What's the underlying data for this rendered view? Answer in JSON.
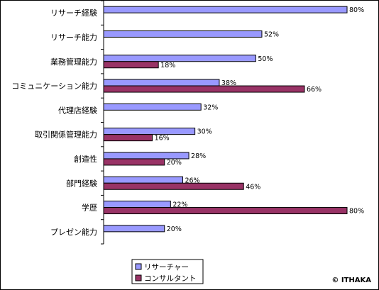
{
  "chart_data": {
    "type": "bar",
    "orientation": "horizontal",
    "categories": [
      "リサーチ経験",
      "リサーチ能力",
      "業務管理能力",
      "コミュニケーション能力",
      "代理店経験",
      "取引関係管理能力",
      "創造性",
      "部門経験",
      "学歴",
      "プレゼン能力"
    ],
    "series": [
      {
        "name": "リサーチャー",
        "color": "#9999ff",
        "values": [
          80,
          52,
          50,
          38,
          32,
          30,
          28,
          26,
          22,
          20
        ]
      },
      {
        "name": "コンサルタント",
        "color": "#993366",
        "values": [
          null,
          null,
          18,
          66,
          null,
          16,
          20,
          46,
          80,
          null
        ]
      }
    ],
    "value_suffix": "%",
    "xlim": [
      0,
      80
    ],
    "grid": false,
    "legend_position": "bottom-left",
    "title": "",
    "xlabel": "",
    "ylabel": ""
  },
  "credit": "© ITHAKA"
}
